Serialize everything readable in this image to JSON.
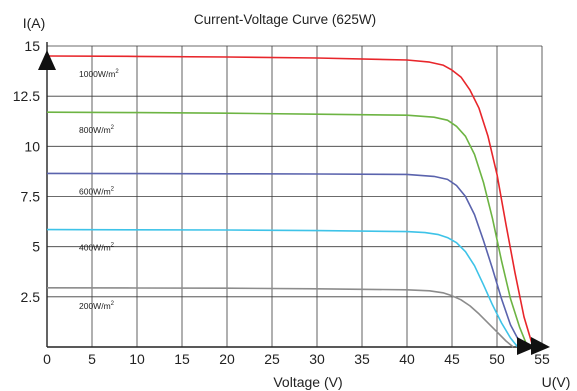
{
  "chart_data": {
    "type": "line",
    "title": "Current-Voltage  Curve (625W)",
    "xlabel": "Voltage  (V)",
    "ylabel": "I(A)",
    "x_axis_end_label": "U(V)",
    "xlim": [
      0,
      55
    ],
    "ylim": [
      0,
      15
    ],
    "x_ticks": [
      "0",
      "5",
      "10",
      "15",
      "20",
      "25",
      "30",
      "35",
      "40",
      "45",
      "50",
      "55"
    ],
    "y_ticks": [
      "2.5",
      "5",
      "7.5",
      "10",
      "12.5",
      "15"
    ],
    "grid": true,
    "series": [
      {
        "name_main": "1000W/m",
        "name_sup": "2",
        "color": "#e8262b",
        "x": [
          0,
          10,
          20,
          30,
          40,
          42.5,
          44,
          45,
          46,
          47,
          48,
          49,
          50,
          51,
          52,
          53,
          54
        ],
        "y": [
          14.5,
          14.48,
          14.45,
          14.4,
          14.3,
          14.2,
          14.05,
          13.8,
          13.45,
          12.8,
          11.9,
          10.5,
          8.6,
          6.1,
          3.7,
          1.5,
          0
        ]
      },
      {
        "name_main": "800W/m",
        "name_sup": "2",
        "color": "#6db443",
        "x": [
          0,
          10,
          20,
          30,
          40,
          43,
          44.5,
          45.5,
          46.5,
          47.5,
          48.5,
          49.5,
          50.5,
          51.5,
          52.5,
          53.4
        ],
        "y": [
          11.7,
          11.68,
          11.65,
          11.6,
          11.55,
          11.45,
          11.3,
          11.0,
          10.5,
          9.6,
          8.2,
          6.4,
          4.3,
          2.4,
          1.0,
          0
        ]
      },
      {
        "name_main": "600W/m",
        "name_sup": "2",
        "color": "#5a63ad",
        "x": [
          0,
          10,
          20,
          30,
          40,
          43,
          44.5,
          45.5,
          46.5,
          47.5,
          48.5,
          49.5,
          50.5,
          51.5,
          52.8
        ],
        "y": [
          8.65,
          8.64,
          8.63,
          8.62,
          8.6,
          8.5,
          8.35,
          8.05,
          7.5,
          6.6,
          5.3,
          3.9,
          2.4,
          1.1,
          0
        ]
      },
      {
        "name_main": "400W/m",
        "name_sup": "2",
        "color": "#3ec3e8",
        "x": [
          0,
          10,
          20,
          30,
          40,
          42,
          43.5,
          44.5,
          45.5,
          46.5,
          47.5,
          48.5,
          49.5,
          50.5,
          51.5,
          52.3
        ],
        "y": [
          5.85,
          5.84,
          5.83,
          5.8,
          5.75,
          5.7,
          5.6,
          5.45,
          5.2,
          4.75,
          4.05,
          3.1,
          2.1,
          1.2,
          0.45,
          0
        ]
      },
      {
        "name_main": "200W/m",
        "name_sup": "2",
        "color": "#8c8c8c",
        "x": [
          0,
          10,
          20,
          30,
          40,
          42.5,
          44,
          45,
          46,
          47,
          48,
          49,
          50,
          51,
          51.8
        ],
        "y": [
          2.95,
          2.94,
          2.93,
          2.9,
          2.85,
          2.8,
          2.7,
          2.55,
          2.35,
          2.05,
          1.65,
          1.2,
          0.75,
          0.3,
          0
        ]
      }
    ]
  }
}
